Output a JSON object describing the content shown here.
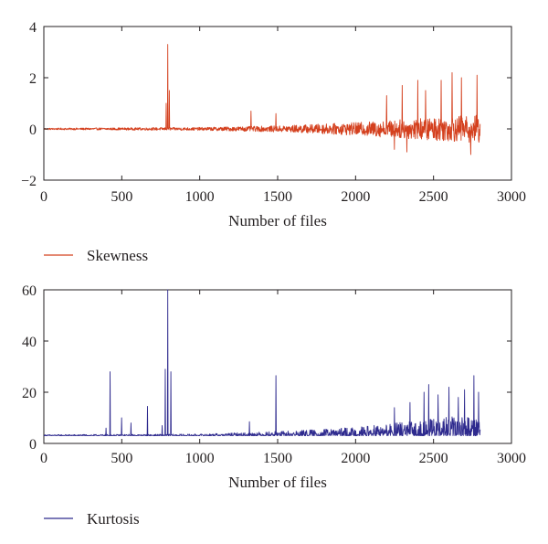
{
  "colors": {
    "skewness": "#d4401e",
    "kurtosis": "#2e2a8e",
    "axis": "#231f20"
  },
  "chart_data": [
    {
      "type": "line",
      "xlabel": "Number of files",
      "ylabel": "",
      "xlim": [
        0,
        3000
      ],
      "ylim": [
        -2,
        4
      ],
      "xticks": [
        "0",
        "500",
        "1000",
        "1500",
        "2000",
        "2500",
        "3000"
      ],
      "yticks": [
        "−2",
        "0",
        "2",
        "4"
      ],
      "legend_position": "bottom-left",
      "grid": false,
      "series": [
        {
          "name": "Skewness",
          "color": "#d4401e",
          "n_points": 2800,
          "baseline": 0.0,
          "noise_profile": [
            [
              0,
              0.03
            ],
            [
              1000,
              0.06
            ],
            [
              1500,
              0.12
            ],
            [
              2000,
              0.25
            ],
            [
              2500,
              0.45
            ],
            [
              2800,
              0.55
            ]
          ],
          "spikes": [
            {
              "x": 785,
              "y": 1.0
            },
            {
              "x": 795,
              "y": 3.3
            },
            {
              "x": 805,
              "y": 1.5
            },
            {
              "x": 1330,
              "y": 0.7
            },
            {
              "x": 1490,
              "y": 0.6
            },
            {
              "x": 2200,
              "y": 1.3
            },
            {
              "x": 2250,
              "y": -0.8
            },
            {
              "x": 2300,
              "y": 1.7
            },
            {
              "x": 2330,
              "y": -0.9
            },
            {
              "x": 2400,
              "y": 1.9
            },
            {
              "x": 2450,
              "y": 1.5
            },
            {
              "x": 2550,
              "y": 1.9
            },
            {
              "x": 2620,
              "y": 2.2
            },
            {
              "x": 2680,
              "y": 2.0
            },
            {
              "x": 2740,
              "y": -1.0
            },
            {
              "x": 2780,
              "y": 2.1
            }
          ]
        }
      ]
    },
    {
      "type": "line",
      "xlabel": "Number of files",
      "ylabel": "",
      "xlim": [
        0,
        3000
      ],
      "ylim": [
        0,
        60
      ],
      "xticks": [
        "0",
        "500",
        "1000",
        "1500",
        "2000",
        "2500",
        "3000"
      ],
      "yticks": [
        "0",
        "20",
        "40",
        "60"
      ],
      "legend_position": "bottom-left",
      "grid": false,
      "series": [
        {
          "name": "Kurtosis",
          "color": "#2e2a8e",
          "n_points": 2800,
          "baseline": 3.0,
          "noise_profile": [
            [
              0,
              0.2
            ],
            [
              1000,
              0.3
            ],
            [
              1500,
              0.8
            ],
            [
              2000,
              1.5
            ],
            [
              2500,
              3.0
            ],
            [
              2800,
              4.0
            ]
          ],
          "spikes": [
            {
              "x": 400,
              "y": 6
            },
            {
              "x": 425,
              "y": 28
            },
            {
              "x": 500,
              "y": 10
            },
            {
              "x": 560,
              "y": 8
            },
            {
              "x": 665,
              "y": 14.5
            },
            {
              "x": 760,
              "y": 7
            },
            {
              "x": 780,
              "y": 29
            },
            {
              "x": 795,
              "y": 60
            },
            {
              "x": 815,
              "y": 28
            },
            {
              "x": 1320,
              "y": 8.5
            },
            {
              "x": 1490,
              "y": 26.5
            },
            {
              "x": 2250,
              "y": 14
            },
            {
              "x": 2350,
              "y": 16
            },
            {
              "x": 2440,
              "y": 20
            },
            {
              "x": 2470,
              "y": 23
            },
            {
              "x": 2530,
              "y": 19
            },
            {
              "x": 2600,
              "y": 22
            },
            {
              "x": 2660,
              "y": 18
            },
            {
              "x": 2700,
              "y": 21
            },
            {
              "x": 2760,
              "y": 26.5
            },
            {
              "x": 2790,
              "y": 20
            }
          ]
        }
      ]
    }
  ]
}
